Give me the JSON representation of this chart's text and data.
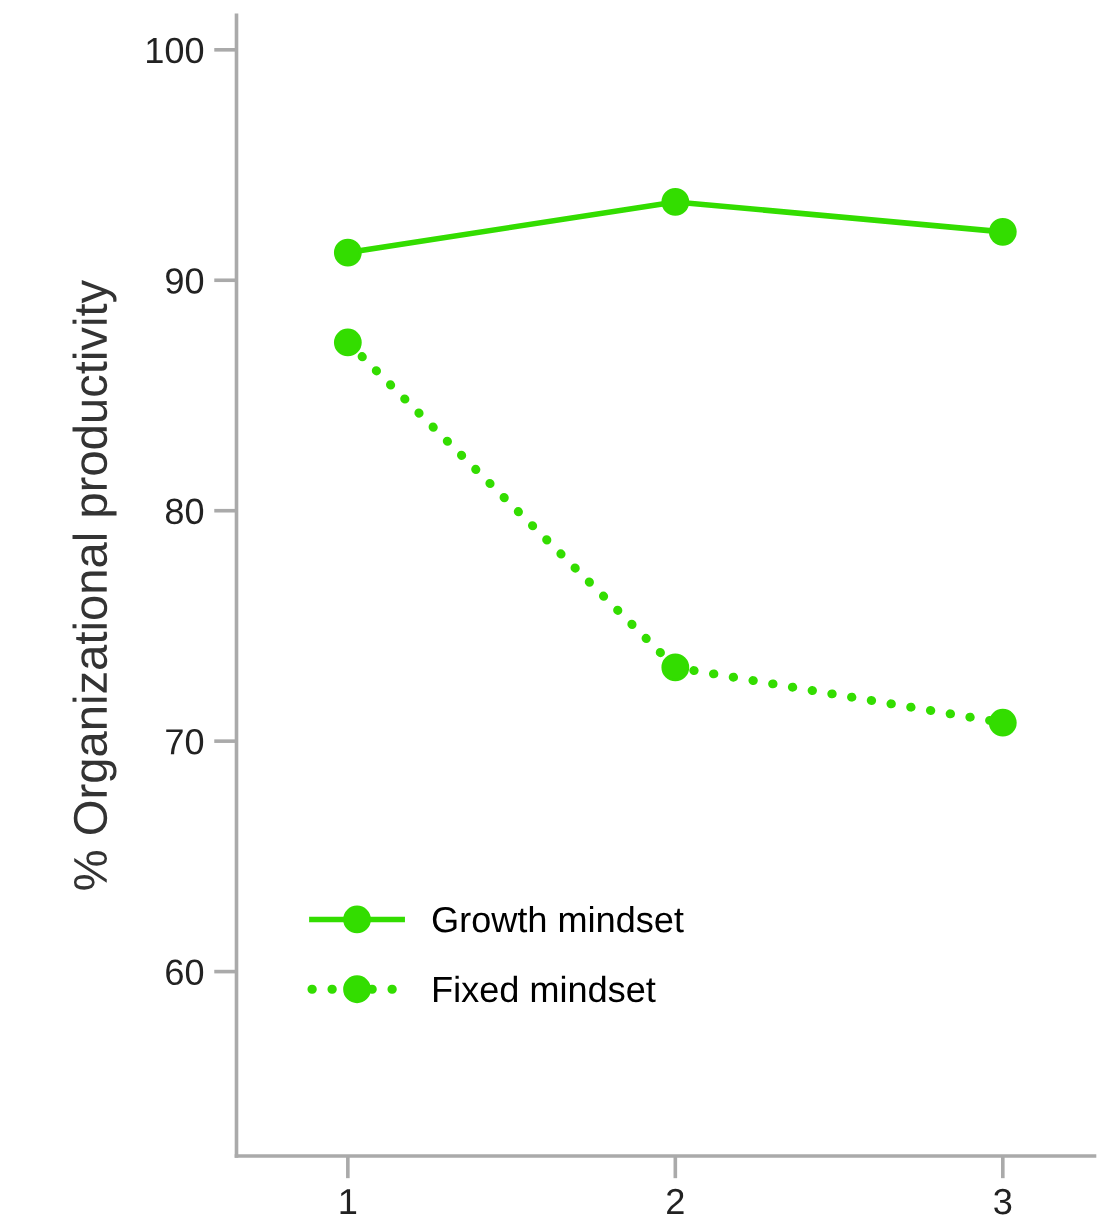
{
  "chart_data": {
    "type": "line",
    "ylabel": "% Organizational productivity",
    "x": [
      1,
      2,
      3
    ],
    "series": [
      {
        "name": "Growth mindset",
        "color": "#33dd00",
        "values": [
          91.2,
          93.4,
          92.1
        ],
        "line_style": "solid"
      },
      {
        "name": "Fixed mindset",
        "color": "#33dd00",
        "values": [
          87.3,
          73.2,
          70.8
        ],
        "line_style": "dotted"
      }
    ],
    "xlim": [
      0.66,
      3.28
    ],
    "xticks": [
      1,
      2,
      3
    ],
    "ylim": [
      52,
      101.5
    ],
    "yticks": [
      60,
      70,
      80,
      90,
      100
    ],
    "marker": "circle",
    "legend": "bottom left",
    "grid": false
  }
}
